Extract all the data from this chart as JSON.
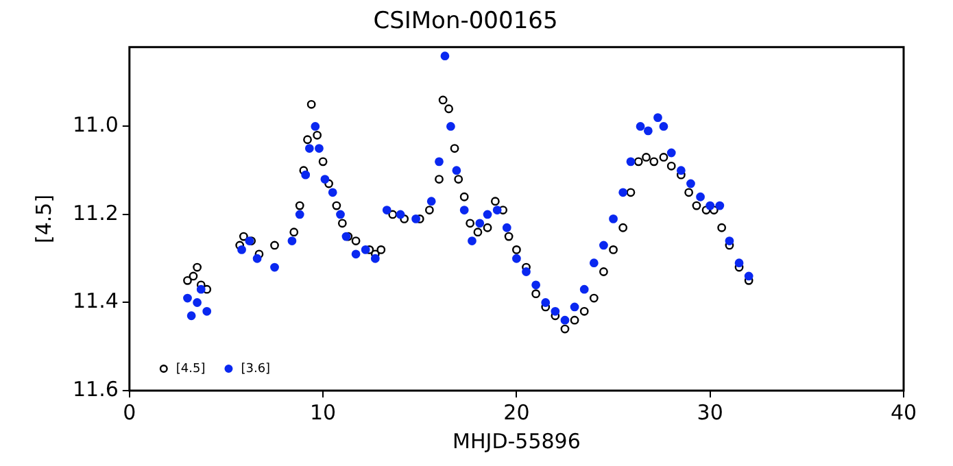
{
  "chart_data": {
    "type": "scatter",
    "title": "CSIMon-000165",
    "xlabel": "MHJD-55896",
    "ylabel": "[4.5]",
    "xlim": [
      0,
      40
    ],
    "xticks": [
      0,
      10,
      20,
      30,
      40
    ],
    "ylim": [
      11.6,
      10.82
    ],
    "yticks": [
      {
        "value": 11,
        "label": "11.0"
      },
      {
        "value": 11.2,
        "label": "11.2"
      },
      {
        "value": 11.4,
        "label": "11.4"
      },
      {
        "value": 11.6,
        "label": "11.6"
      }
    ],
    "grid": false,
    "legend": "bottom left",
    "marker": "circle",
    "series": [
      {
        "name": "[4.5]",
        "color": "#000000",
        "x": [
          3.0,
          3.3,
          3.5,
          3.7,
          4.0,
          5.7,
          5.9,
          6.3,
          6.7,
          7.5,
          8.5,
          8.8,
          9.0,
          9.2,
          9.4,
          9.7,
          10.0,
          10.3,
          10.7,
          11.0,
          11.3,
          11.7,
          12.4,
          12.7,
          13.0,
          13.6,
          14.2,
          15.0,
          15.5,
          16.0,
          16.2,
          16.5,
          16.8,
          17.0,
          17.3,
          17.6,
          18.0,
          18.5,
          18.9,
          19.3,
          19.6,
          20.0,
          20.5,
          21.0,
          21.5,
          22.0,
          22.5,
          23.0,
          23.5,
          24.0,
          24.5,
          25.0,
          25.5,
          25.9,
          26.3,
          26.7,
          27.1,
          27.6,
          28.0,
          28.5,
          28.9,
          29.3,
          29.8,
          30.2,
          30.6,
          31.0,
          31.5,
          32.0
        ],
        "values": [
          11.35,
          11.34,
          11.32,
          11.36,
          11.37,
          11.27,
          11.25,
          11.26,
          11.29,
          11.27,
          11.24,
          11.18,
          11.1,
          11.03,
          10.95,
          11.02,
          11.08,
          11.13,
          11.18,
          11.22,
          11.25,
          11.26,
          11.28,
          11.29,
          11.28,
          11.2,
          11.21,
          11.21,
          11.19,
          11.12,
          10.94,
          10.96,
          11.05,
          11.12,
          11.16,
          11.22,
          11.24,
          11.23,
          11.17,
          11.19,
          11.25,
          11.28,
          11.32,
          11.38,
          11.41,
          11.43,
          11.46,
          11.44,
          11.42,
          11.39,
          11.33,
          11.28,
          11.23,
          11.15,
          11.08,
          11.07,
          11.08,
          11.07,
          11.09,
          11.11,
          11.15,
          11.18,
          11.19,
          11.19,
          11.23,
          11.27,
          11.32,
          11.35
        ]
      },
      {
        "name": "[3.6]",
        "color": "#0a28f0",
        "x": [
          3.0,
          3.2,
          3.5,
          3.7,
          4.0,
          5.8,
          6.2,
          6.6,
          7.5,
          8.4,
          8.8,
          9.1,
          9.3,
          9.6,
          9.8,
          10.1,
          10.5,
          10.9,
          11.2,
          11.7,
          12.2,
          12.7,
          13.3,
          14.0,
          14.8,
          15.6,
          16.0,
          16.3,
          16.6,
          16.9,
          17.3,
          17.7,
          18.1,
          18.5,
          19.0,
          19.5,
          20.0,
          20.5,
          21.0,
          21.5,
          22.0,
          22.5,
          23.0,
          23.5,
          24.0,
          24.5,
          25.0,
          25.5,
          25.9,
          26.4,
          26.8,
          27.3,
          27.6,
          28.0,
          28.5,
          29.0,
          29.5,
          30.0,
          30.5,
          31.0,
          31.5,
          32.0
        ],
        "values": [
          11.39,
          11.43,
          11.4,
          11.37,
          11.42,
          11.28,
          11.26,
          11.3,
          11.32,
          11.26,
          11.2,
          11.11,
          11.05,
          11.0,
          11.05,
          11.12,
          11.15,
          11.2,
          11.25,
          11.29,
          11.28,
          11.3,
          11.19,
          11.2,
          11.21,
          11.17,
          11.08,
          10.84,
          11.0,
          11.1,
          11.19,
          11.26,
          11.22,
          11.2,
          11.19,
          11.23,
          11.3,
          11.33,
          11.36,
          11.4,
          11.42,
          11.44,
          11.41,
          11.37,
          11.31,
          11.27,
          11.21,
          11.15,
          11.08,
          11.0,
          11.01,
          10.98,
          11.0,
          11.06,
          11.1,
          11.13,
          11.16,
          11.18,
          11.18,
          11.26,
          11.31,
          11.34
        ]
      }
    ]
  }
}
